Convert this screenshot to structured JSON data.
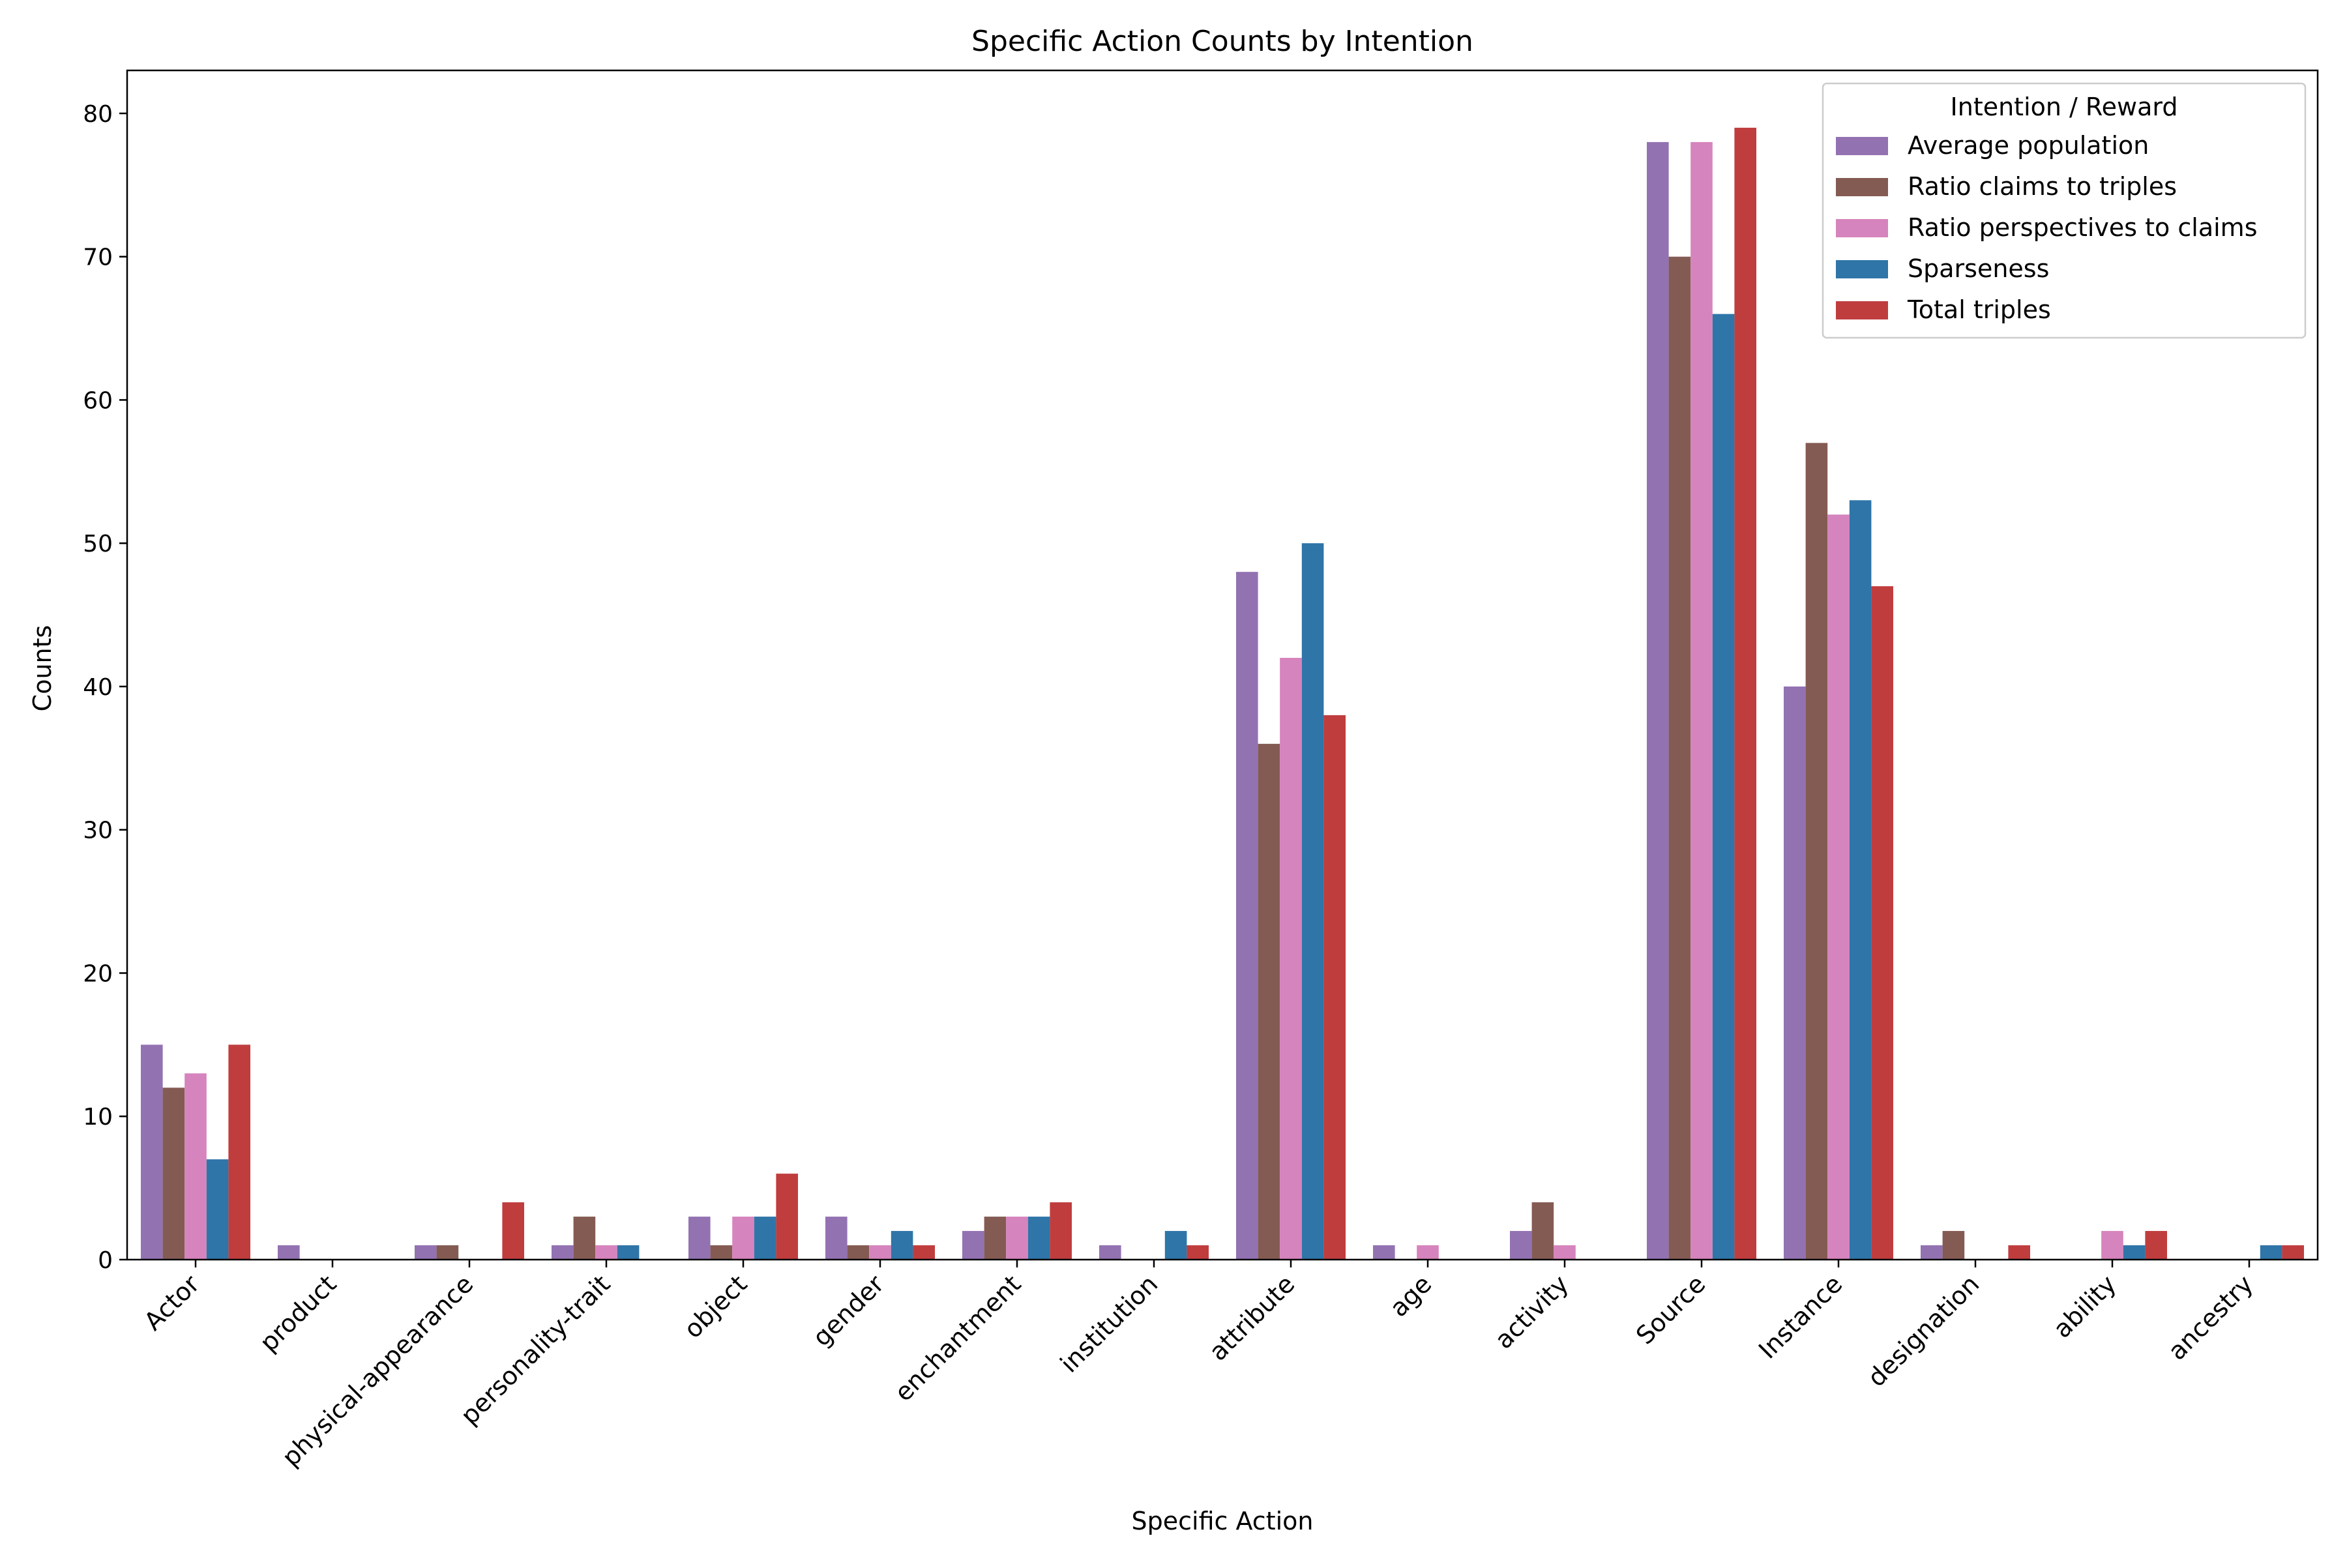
{
  "chart_data": {
    "type": "bar",
    "title": "Specific Action Counts by Intention",
    "xlabel": "Specific Action",
    "ylabel": "Counts",
    "ylim": [
      0,
      83
    ],
    "yticks": [
      0,
      10,
      20,
      30,
      40,
      50,
      60,
      70,
      80
    ],
    "grid": false,
    "legend": {
      "title": "Intention / Reward",
      "position": "top-right"
    },
    "categories": [
      "Actor",
      "product",
      "physical-appearance",
      "personality-trait",
      "object",
      "gender",
      "enchantment",
      "institution",
      "attribute",
      "age",
      "activity",
      "Source",
      "Instance",
      "designation",
      "ability",
      "ancestry"
    ],
    "series": [
      {
        "name": "Average population",
        "color": "#9372b2",
        "values": [
          15,
          1,
          1,
          1,
          3,
          3,
          2,
          1,
          48,
          1,
          2,
          78,
          40,
          1,
          0,
          0
        ]
      },
      {
        "name": "Ratio claims to triples",
        "color": "#845b53",
        "values": [
          12,
          0,
          1,
          3,
          1,
          1,
          3,
          0,
          36,
          0,
          4,
          70,
          57,
          2,
          0,
          0
        ]
      },
      {
        "name": "Ratio perspectives to claims",
        "color": "#d684bd",
        "values": [
          13,
          0,
          0,
          1,
          3,
          1,
          3,
          0,
          42,
          1,
          1,
          78,
          52,
          0,
          2,
          0
        ]
      },
      {
        "name": "Sparseness",
        "color": "#2f75a8",
        "values": [
          7,
          0,
          0,
          1,
          3,
          2,
          3,
          2,
          50,
          0,
          0,
          66,
          53,
          0,
          1,
          1
        ]
      },
      {
        "name": "Total triples",
        "color": "#c03d3e",
        "values": [
          15,
          0,
          4,
          0,
          6,
          1,
          4,
          1,
          38,
          0,
          0,
          79,
          47,
          1,
          2,
          1
        ]
      }
    ]
  }
}
